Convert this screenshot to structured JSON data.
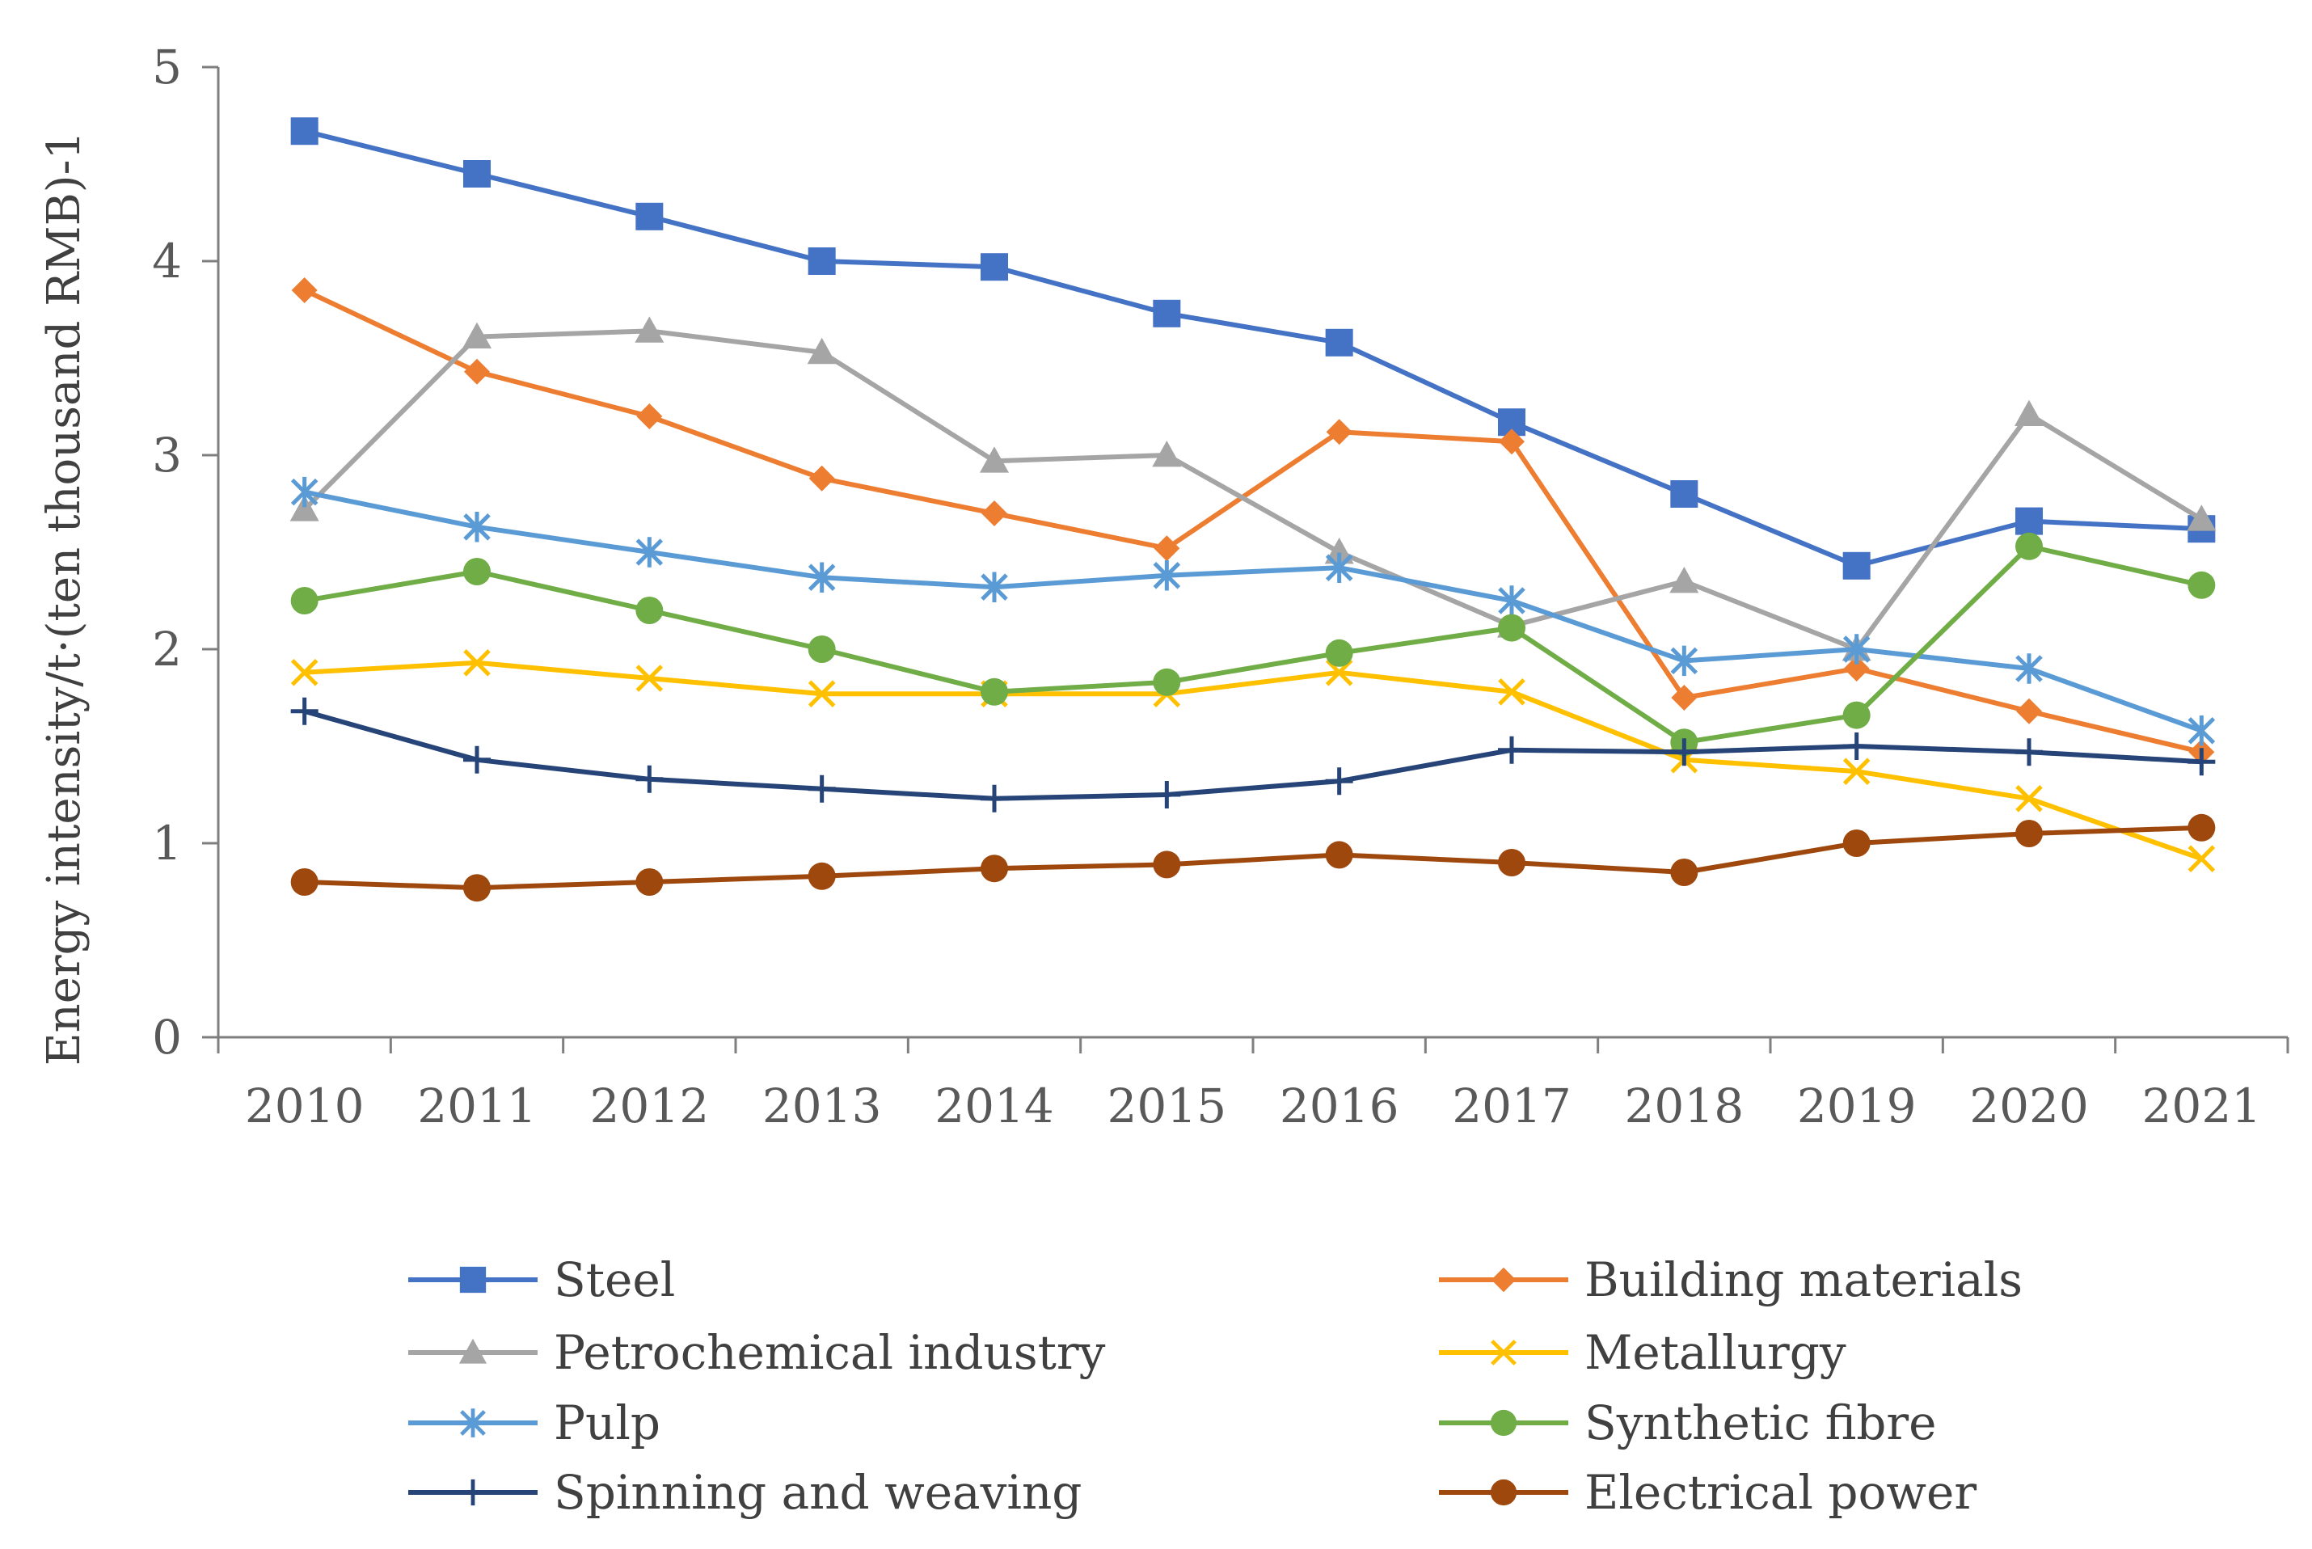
{
  "chart_data": {
    "type": "line",
    "title": "",
    "xlabel": "",
    "ylabel": "Energy intensity/t·(ten thousand RMB)-1",
    "ylim": [
      0,
      5
    ],
    "yticks": [
      "0",
      "1",
      "2",
      "3",
      "4",
      "5"
    ],
    "categories": [
      "2010",
      "2011",
      "2012",
      "2013",
      "2014",
      "2015",
      "2016",
      "2017",
      "2018",
      "2019",
      "2020",
      "2021"
    ],
    "legend_position": "bottom",
    "series": [
      {
        "name": "Steel",
        "color": "#4472C4",
        "marker": "square",
        "values": [
          4.67,
          4.45,
          4.23,
          4.0,
          3.97,
          3.73,
          3.58,
          3.17,
          2.8,
          2.43,
          2.66,
          2.62
        ]
      },
      {
        "name": "Building materials",
        "color": "#ED7D31",
        "marker": "diamond",
        "values": [
          3.85,
          3.43,
          3.2,
          2.88,
          2.7,
          2.52,
          3.12,
          3.07,
          1.75,
          1.9,
          1.68,
          1.47
        ]
      },
      {
        "name": "Petrochemical industry",
        "color": "#A5A5A5",
        "marker": "triangle",
        "values": [
          2.72,
          3.61,
          3.64,
          3.53,
          2.97,
          3.0,
          2.5,
          2.12,
          2.35,
          2.0,
          3.21,
          2.67
        ]
      },
      {
        "name": "Metallurgy",
        "color": "#FFC000",
        "marker": "x",
        "values": [
          1.88,
          1.93,
          1.85,
          1.77,
          1.77,
          1.77,
          1.88,
          1.78,
          1.43,
          1.37,
          1.23,
          0.92
        ]
      },
      {
        "name": "Pulp",
        "color": "#5B9BD5",
        "marker": "asterisk",
        "values": [
          2.81,
          2.63,
          2.5,
          2.37,
          2.32,
          2.38,
          2.42,
          2.25,
          1.94,
          2.0,
          1.9,
          1.58
        ]
      },
      {
        "name": "Synthetic fibre",
        "color": "#70AD47",
        "marker": "circle",
        "values": [
          2.25,
          2.4,
          2.2,
          2.0,
          1.78,
          1.83,
          1.98,
          2.11,
          1.52,
          1.66,
          2.53,
          2.33
        ]
      },
      {
        "name": "Spinning and weaving",
        "color": "#264478",
        "marker": "plus",
        "values": [
          1.68,
          1.43,
          1.33,
          1.28,
          1.23,
          1.25,
          1.32,
          1.48,
          1.47,
          1.5,
          1.47,
          1.42
        ]
      },
      {
        "name": "Electrical power",
        "color": "#9E480E",
        "marker": "circle",
        "values": [
          0.8,
          0.77,
          0.8,
          0.83,
          0.87,
          0.89,
          0.94,
          0.9,
          0.85,
          1.0,
          1.05,
          1.08
        ]
      }
    ]
  }
}
